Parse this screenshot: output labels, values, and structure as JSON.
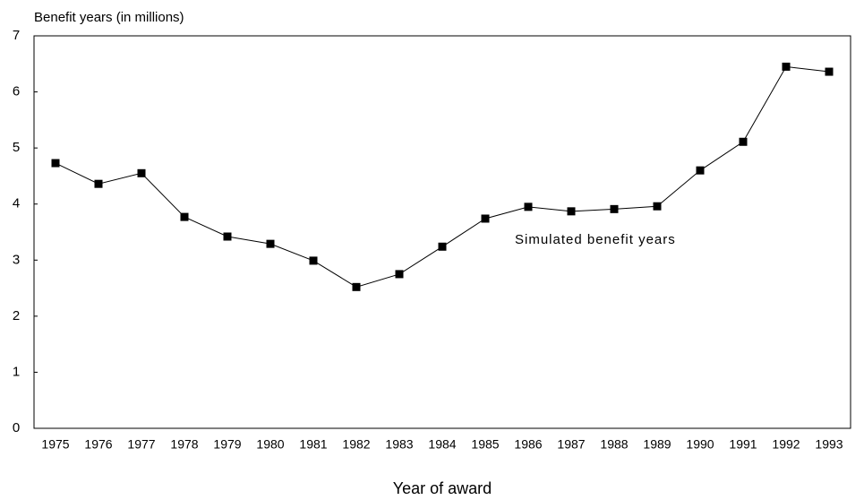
{
  "chart_data": {
    "type": "line",
    "y_axis_label": "Benefit years (in millions)",
    "x_axis_label": "Year of award",
    "categories": [
      "1975",
      "1976",
      "1977",
      "1978",
      "1979",
      "1980",
      "1981",
      "1982",
      "1983",
      "1984",
      "1985",
      "1986",
      "1987",
      "1988",
      "1989",
      "1990",
      "1991",
      "1992",
      "1993"
    ],
    "series": [
      {
        "name": "Simulated benefit years",
        "color": "#000000",
        "values": [
          4.73,
          4.36,
          4.55,
          3.77,
          3.42,
          3.29,
          2.99,
          2.52,
          2.75,
          3.24,
          3.74,
          3.95,
          3.87,
          3.91,
          3.96,
          4.6,
          5.11,
          6.45,
          6.36
        ]
      }
    ],
    "ylim": [
      0,
      7
    ],
    "yticks": [
      0,
      1,
      2,
      3,
      4,
      5,
      6,
      7
    ],
    "grid": false
  }
}
